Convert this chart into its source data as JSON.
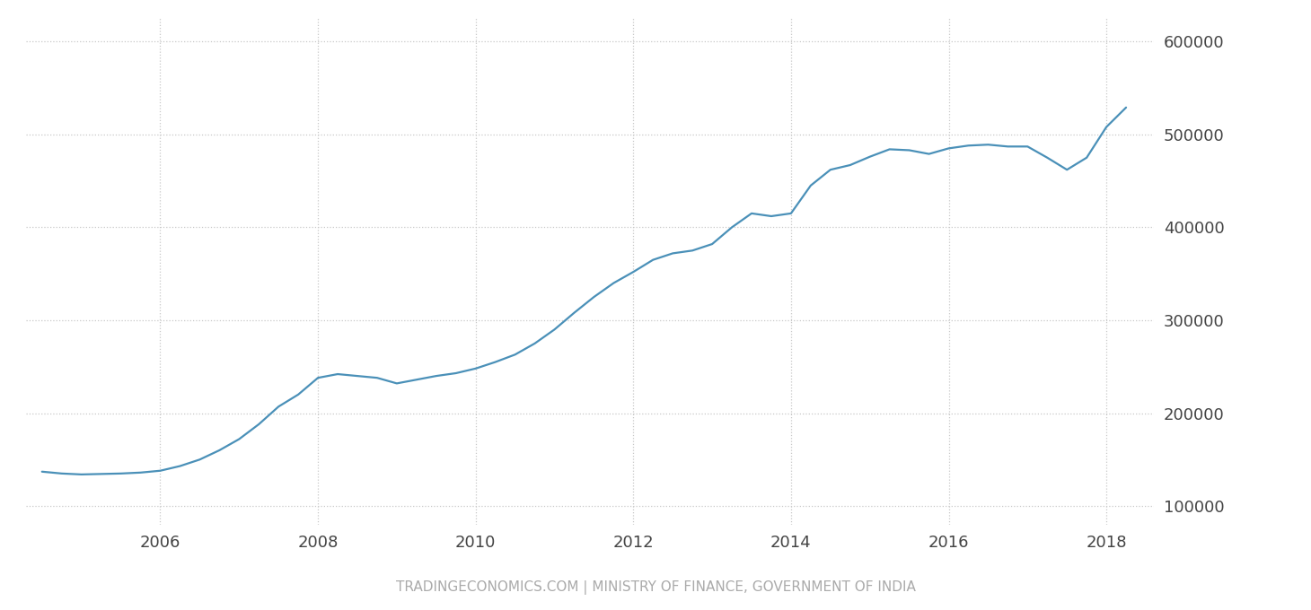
{
  "title": "",
  "footer": "TRADINGECONOMICS.COM | MINISTRY OF FINANCE, GOVERNMENT OF INDIA",
  "line_color": "#4a90b8",
  "background_color": "#ffffff",
  "grid_color": "#c8c8c8",
  "footer_color": "#aaaaaa",
  "ylim": [
    80000,
    625000
  ],
  "yticks": [
    100000,
    200000,
    300000,
    400000,
    500000,
    600000
  ],
  "xticks": [
    2006,
    2008,
    2010,
    2012,
    2014,
    2016,
    2018
  ],
  "xlim_start": 2004.3,
  "xlim_end": 2018.6,
  "data": [
    [
      2004.5,
      137000
    ],
    [
      2004.75,
      135000
    ],
    [
      2005.0,
      134000
    ],
    [
      2005.25,
      134500
    ],
    [
      2005.5,
      135000
    ],
    [
      2005.75,
      136000
    ],
    [
      2006.0,
      138000
    ],
    [
      2006.25,
      143000
    ],
    [
      2006.5,
      150000
    ],
    [
      2006.75,
      160000
    ],
    [
      2007.0,
      172000
    ],
    [
      2007.25,
      188000
    ],
    [
      2007.5,
      207000
    ],
    [
      2007.75,
      220000
    ],
    [
      2008.0,
      238000
    ],
    [
      2008.25,
      242000
    ],
    [
      2008.5,
      240000
    ],
    [
      2008.75,
      238000
    ],
    [
      2009.0,
      232000
    ],
    [
      2009.25,
      236000
    ],
    [
      2009.5,
      240000
    ],
    [
      2009.75,
      243000
    ],
    [
      2010.0,
      248000
    ],
    [
      2010.25,
      255000
    ],
    [
      2010.5,
      263000
    ],
    [
      2010.75,
      275000
    ],
    [
      2011.0,
      290000
    ],
    [
      2011.25,
      308000
    ],
    [
      2011.5,
      325000
    ],
    [
      2011.75,
      340000
    ],
    [
      2012.0,
      352000
    ],
    [
      2012.25,
      365000
    ],
    [
      2012.5,
      372000
    ],
    [
      2012.75,
      375000
    ],
    [
      2013.0,
      382000
    ],
    [
      2013.25,
      400000
    ],
    [
      2013.5,
      415000
    ],
    [
      2013.75,
      412000
    ],
    [
      2014.0,
      415000
    ],
    [
      2014.25,
      445000
    ],
    [
      2014.5,
      462000
    ],
    [
      2014.75,
      467000
    ],
    [
      2015.0,
      476000
    ],
    [
      2015.25,
      484000
    ],
    [
      2015.5,
      483000
    ],
    [
      2015.75,
      479000
    ],
    [
      2016.0,
      485000
    ],
    [
      2016.25,
      488000
    ],
    [
      2016.5,
      489000
    ],
    [
      2016.75,
      487000
    ],
    [
      2017.0,
      487000
    ],
    [
      2017.25,
      475000
    ],
    [
      2017.5,
      462000
    ],
    [
      2017.75,
      475000
    ],
    [
      2018.0,
      508000
    ],
    [
      2018.25,
      529000
    ]
  ]
}
